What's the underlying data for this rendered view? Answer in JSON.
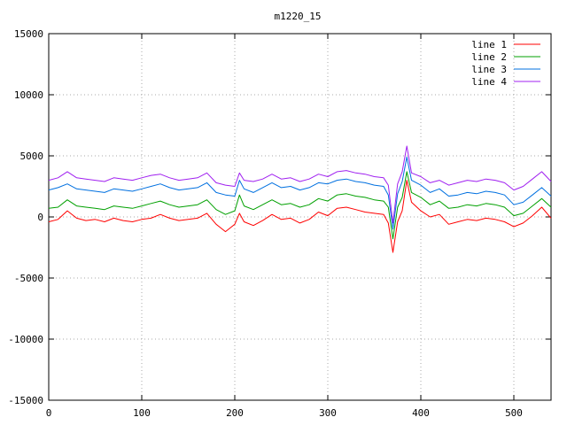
{
  "chart_data": {
    "type": "line",
    "title": "m1220_15",
    "xlabel": "",
    "ylabel": "",
    "xlim": [
      0,
      540
    ],
    "ylim": [
      -15000,
      15000
    ],
    "xticks": [
      0,
      100,
      200,
      300,
      400,
      500
    ],
    "yticks": [
      -15000,
      -10000,
      -5000,
      0,
      5000,
      10000,
      15000
    ],
    "grid": true,
    "legend_position": "top-right",
    "x": [
      0,
      10,
      20,
      30,
      40,
      50,
      60,
      70,
      80,
      90,
      100,
      110,
      120,
      130,
      140,
      150,
      160,
      170,
      180,
      190,
      200,
      205,
      210,
      220,
      230,
      240,
      250,
      260,
      270,
      280,
      290,
      300,
      310,
      320,
      330,
      340,
      350,
      360,
      365,
      370,
      375,
      380,
      385,
      390,
      400,
      410,
      420,
      430,
      440,
      450,
      460,
      470,
      480,
      490,
      500,
      510,
      520,
      530,
      540
    ],
    "series": [
      {
        "name": "line 1",
        "color": "#ff0000",
        "values": [
          -400,
          -200,
          500,
          -100,
          -300,
          -200,
          -400,
          -100,
          -300,
          -400,
          -200,
          -100,
          200,
          -100,
          -300,
          -200,
          -100,
          300,
          -600,
          -1200,
          -600,
          300,
          -400,
          -700,
          -300,
          200,
          -200,
          -100,
          -500,
          -200,
          400,
          100,
          700,
          800,
          600,
          400,
          300,
          200,
          -500,
          -2900,
          -400,
          500,
          3000,
          1200,
          500,
          0,
          200,
          -600,
          -400,
          -200,
          -300,
          -100,
          -200,
          -400,
          -800,
          -500,
          100,
          800,
          -100
        ]
      },
      {
        "name": "line 2",
        "color": "#00a000",
        "values": [
          700,
          800,
          1400,
          900,
          800,
          700,
          600,
          900,
          800,
          700,
          900,
          1100,
          1300,
          1000,
          800,
          900,
          1000,
          1400,
          600,
          200,
          500,
          1800,
          900,
          600,
          1000,
          1400,
          1000,
          1100,
          800,
          1000,
          1500,
          1300,
          1800,
          1900,
          1700,
          1600,
          1400,
          1300,
          800,
          -1800,
          800,
          1600,
          3700,
          2000,
          1600,
          1000,
          1300,
          700,
          800,
          1000,
          900,
          1100,
          1000,
          800,
          100,
          300,
          900,
          1500,
          800
        ]
      },
      {
        "name": "line 3",
        "color": "#0070e0",
        "values": [
          2200,
          2400,
          2700,
          2300,
          2200,
          2100,
          2000,
          2300,
          2200,
          2100,
          2300,
          2500,
          2700,
          2400,
          2200,
          2300,
          2400,
          2800,
          2000,
          1800,
          1700,
          3000,
          2300,
          2000,
          2400,
          2800,
          2400,
          2500,
          2200,
          2400,
          2800,
          2700,
          3000,
          3100,
          2900,
          2800,
          2600,
          2500,
          1800,
          -1000,
          1900,
          2900,
          4900,
          3000,
          2600,
          2000,
          2300,
          1700,
          1800,
          2000,
          1900,
          2100,
          2000,
          1800,
          1000,
          1200,
          1800,
          2400,
          1700
        ]
      },
      {
        "name": "line 4",
        "color": "#a020f0",
        "values": [
          3000,
          3200,
          3700,
          3200,
          3100,
          3000,
          2900,
          3200,
          3100,
          3000,
          3200,
          3400,
          3500,
          3200,
          3000,
          3100,
          3200,
          3600,
          2800,
          2600,
          2500,
          3600,
          3000,
          2900,
          3100,
          3500,
          3100,
          3200,
          2900,
          3100,
          3500,
          3300,
          3700,
          3800,
          3600,
          3500,
          3300,
          3200,
          2600,
          -500,
          2700,
          3700,
          5800,
          3600,
          3300,
          2800,
          3000,
          2600,
          2800,
          3000,
          2900,
          3100,
          3000,
          2800,
          2200,
          2500,
          3100,
          3700,
          2900
        ]
      }
    ]
  }
}
